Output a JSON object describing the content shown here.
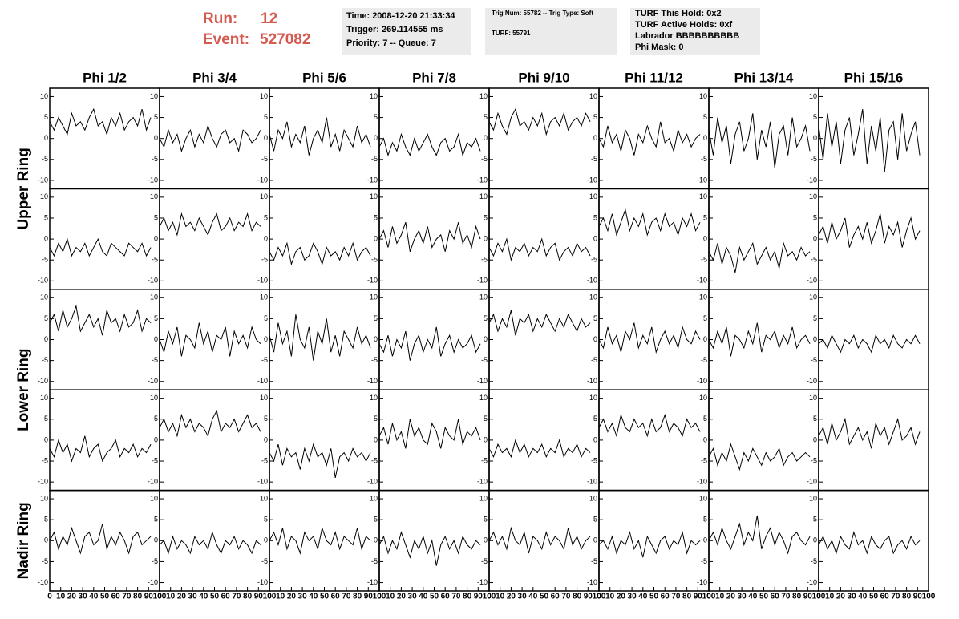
{
  "header": {
    "run_label": "Run:",
    "run": "12",
    "event_label": "Event:",
    "event": "527082",
    "box1": [
      "Time: 2008-12-20 21:33:34",
      "Trigger: 269.114555 ms",
      "Priority: 7 -- Queue: 7"
    ],
    "box2": [
      "Trig Num: 55782 -- Trig Type: Soft",
      "TURF: 55791"
    ],
    "box3": [
      "TURF This Hold: 0x2",
      "TURF Active Holds: 0xf",
      "Labrador BBBBBBBBBB",
      "Phi Mask: 0"
    ]
  },
  "chart_data": {
    "type": "waveform-grid",
    "phi_labels": [
      "Phi 1/2",
      "Phi 3/4",
      "Phi 5/6",
      "Phi 7/8",
      "Phi 9/10",
      "Phi 11/12",
      "Phi 13/14",
      "Phi 15/16"
    ],
    "ring_labels": [
      "Upper Ring",
      "Lower Ring",
      "Nadir Ring"
    ],
    "xlim": [
      0,
      100
    ],
    "ylim": [
      -12,
      12
    ],
    "xticks": [
      0,
      10,
      20,
      30,
      40,
      50,
      60,
      70,
      80,
      90,
      100
    ],
    "yticks": [
      10,
      5,
      0,
      -5,
      -10
    ],
    "color": "#000000",
    "x": [
      0,
      4,
      8,
      12,
      16,
      20,
      24,
      28,
      32,
      36,
      40,
      44,
      48,
      52,
      56,
      60,
      64,
      68,
      72,
      76,
      80,
      84,
      88,
      92
    ],
    "panels": [
      [
        [
          4,
          2,
          5,
          3,
          1,
          6,
          3,
          4,
          2,
          5,
          7,
          3,
          4,
          1,
          5,
          3,
          6,
          2,
          4,
          5,
          3,
          7,
          2,
          5
        ],
        [
          0,
          -2,
          2,
          -1,
          1,
          -3,
          0,
          2,
          -2,
          1,
          -1,
          3,
          0,
          -2,
          1,
          2,
          -1,
          0,
          -3,
          2,
          1,
          -1,
          0,
          2
        ],
        [
          1,
          -3,
          2,
          0,
          4,
          -2,
          1,
          -1,
          3,
          -4,
          0,
          2,
          -1,
          5,
          -2,
          1,
          -3,
          2,
          0,
          -2,
          3,
          -1,
          1,
          -2
        ],
        [
          -2,
          0,
          -4,
          -1,
          -3,
          1,
          -2,
          -4,
          0,
          -3,
          -1,
          1,
          -2,
          -4,
          -1,
          0,
          -3,
          -2,
          1,
          -4,
          -1,
          -2,
          0,
          -3
        ],
        [
          4,
          2,
          6,
          3,
          1,
          5,
          7,
          3,
          4,
          2,
          5,
          3,
          6,
          1,
          4,
          5,
          3,
          6,
          2,
          4,
          5,
          3,
          6,
          4
        ],
        [
          0,
          -2,
          3,
          -1,
          1,
          -3,
          2,
          0,
          -4,
          1,
          -1,
          3,
          0,
          -2,
          4,
          -1,
          0,
          -3,
          2,
          -1,
          1,
          -2,
          0,
          1
        ],
        [
          2,
          -4,
          5,
          -1,
          3,
          -6,
          1,
          4,
          -3,
          0,
          6,
          -5,
          2,
          -2,
          4,
          -7,
          1,
          3,
          -4,
          5,
          -2,
          0,
          3,
          -3
        ],
        [
          3,
          -5,
          6,
          -2,
          4,
          -6,
          2,
          5,
          -4,
          1,
          7,
          -6,
          3,
          -3,
          5,
          -8,
          2,
          4,
          -5,
          6,
          -3,
          1,
          4,
          -4
        ]
      ],
      [
        [
          -2,
          -4,
          -1,
          -3,
          0,
          -4,
          -2,
          -3,
          -1,
          -4,
          -2,
          0,
          -3,
          -4,
          -1,
          -2,
          -3,
          -4,
          -1,
          -2,
          -3,
          -1,
          -4,
          -2
        ],
        [
          3,
          5,
          2,
          4,
          1,
          6,
          3,
          4,
          2,
          5,
          3,
          1,
          4,
          6,
          2,
          3,
          5,
          2,
          4,
          3,
          6,
          2,
          4,
          3
        ],
        [
          -3,
          -5,
          -2,
          -4,
          -1,
          -6,
          -3,
          -2,
          -5,
          -4,
          -1,
          -3,
          -6,
          -2,
          -4,
          -3,
          -5,
          -2,
          -4,
          -1,
          -5,
          -3,
          -2,
          -4
        ],
        [
          0,
          2,
          -2,
          3,
          -1,
          1,
          4,
          -3,
          0,
          2,
          -1,
          3,
          -2,
          0,
          1,
          -3,
          2,
          0,
          4,
          -1,
          1,
          -2,
          3,
          0
        ],
        [
          -2,
          -4,
          -1,
          -3,
          0,
          -5,
          -2,
          -3,
          -1,
          -4,
          -2,
          -3,
          0,
          -4,
          -2,
          -1,
          -5,
          -3,
          -2,
          -4,
          -1,
          -3,
          -2,
          -4
        ],
        [
          3,
          5,
          2,
          6,
          1,
          4,
          7,
          2,
          5,
          3,
          6,
          1,
          4,
          5,
          2,
          6,
          3,
          4,
          1,
          5,
          3,
          6,
          2,
          4
        ],
        [
          -3,
          -5,
          -1,
          -6,
          -2,
          -4,
          -8,
          -2,
          -5,
          -3,
          -1,
          -6,
          -4,
          -2,
          -5,
          -3,
          -7,
          -1,
          -4,
          -3,
          -5,
          -2,
          -4,
          -3
        ],
        [
          1,
          3,
          -1,
          4,
          0,
          2,
          5,
          -2,
          1,
          3,
          0,
          4,
          -1,
          2,
          6,
          -1,
          3,
          1,
          4,
          -2,
          2,
          5,
          0,
          2
        ]
      ],
      [
        [
          4,
          6,
          2,
          7,
          3,
          5,
          8,
          2,
          4,
          6,
          3,
          5,
          1,
          7,
          4,
          5,
          2,
          6,
          3,
          4,
          7,
          2,
          5,
          4
        ],
        [
          0,
          -3,
          2,
          -1,
          3,
          -4,
          1,
          0,
          -2,
          4,
          -1,
          2,
          -3,
          1,
          0,
          3,
          -4,
          2,
          -1,
          1,
          -2,
          3,
          0,
          -1
        ],
        [
          1,
          -3,
          4,
          -1,
          2,
          -4,
          6,
          0,
          -2,
          3,
          -5,
          2,
          -1,
          5,
          -3,
          1,
          -4,
          2,
          0,
          -2,
          3,
          -1,
          1,
          -2
        ],
        [
          -1,
          -3,
          1,
          -4,
          0,
          -2,
          2,
          -5,
          -1,
          1,
          -3,
          0,
          -2,
          3,
          -4,
          -1,
          1,
          -3,
          0,
          -2,
          -1,
          1,
          -3,
          -1
        ],
        [
          4,
          6,
          2,
          5,
          3,
          7,
          1,
          5,
          4,
          6,
          2,
          5,
          3,
          6,
          4,
          2,
          5,
          3,
          6,
          4,
          2,
          5,
          3,
          4
        ],
        [
          0,
          -2,
          3,
          -1,
          1,
          -3,
          2,
          0,
          4,
          -2,
          1,
          -1,
          3,
          -3,
          0,
          2,
          -1,
          1,
          -2,
          3,
          0,
          -1,
          2,
          0
        ],
        [
          0,
          -2,
          2,
          -1,
          3,
          -4,
          1,
          0,
          -2,
          2,
          -1,
          4,
          -3,
          1,
          0,
          2,
          -2,
          1,
          -1,
          3,
          -2,
          0,
          1,
          -1
        ],
        [
          -1,
          0,
          -2,
          1,
          -1,
          -3,
          0,
          -1,
          1,
          -2,
          0,
          -1,
          -3,
          1,
          -1,
          0,
          -2,
          1,
          -1,
          -2,
          0,
          -1,
          1,
          -1
        ]
      ],
      [
        [
          -2,
          -4,
          0,
          -3,
          -1,
          -5,
          -2,
          -3,
          1,
          -4,
          -2,
          -1,
          -5,
          -3,
          -2,
          0,
          -4,
          -2,
          -3,
          -1,
          -4,
          -2,
          -3,
          -1
        ],
        [
          3,
          5,
          2,
          4,
          1,
          6,
          3,
          5,
          2,
          4,
          3,
          1,
          5,
          7,
          2,
          4,
          3,
          5,
          2,
          4,
          6,
          3,
          4,
          2
        ],
        [
          -3,
          -5,
          -1,
          -6,
          -2,
          -4,
          -3,
          -7,
          -2,
          -5,
          -1,
          -4,
          -3,
          -6,
          -2,
          -9,
          -4,
          -3,
          -5,
          -2,
          -4,
          -3,
          -5,
          -3
        ],
        [
          1,
          3,
          -1,
          4,
          0,
          2,
          -2,
          5,
          1,
          3,
          0,
          -1,
          4,
          2,
          -2,
          3,
          1,
          0,
          5,
          -1,
          2,
          1,
          3,
          0
        ],
        [
          -2,
          -4,
          -1,
          -3,
          -2,
          -4,
          0,
          -3,
          -1,
          -4,
          -2,
          -3,
          -1,
          -4,
          -2,
          -3,
          0,
          -4,
          -2,
          -3,
          -1,
          -4,
          -2,
          -3
        ],
        [
          3,
          5,
          2,
          4,
          1,
          6,
          3,
          2,
          5,
          3,
          4,
          1,
          5,
          2,
          3,
          6,
          2,
          4,
          3,
          1,
          5,
          3,
          4,
          2
        ],
        [
          -4,
          -2,
          -6,
          -3,
          -5,
          -1,
          -4,
          -7,
          -3,
          -5,
          -2,
          -4,
          -6,
          -3,
          -5,
          -4,
          -2,
          -6,
          -4,
          -3,
          -5,
          -4,
          -3,
          -4
        ],
        [
          1,
          3,
          -1,
          4,
          0,
          2,
          5,
          -1,
          1,
          3,
          0,
          2,
          -2,
          4,
          1,
          3,
          -1,
          2,
          5,
          0,
          1,
          3,
          -1,
          2
        ]
      ],
      [
        [
          0,
          2,
          -2,
          1,
          -1,
          3,
          0,
          -3,
          1,
          2,
          -1,
          0,
          4,
          -2,
          1,
          -1,
          2,
          0,
          -3,
          1,
          2,
          -1,
          0,
          1
        ],
        [
          -1,
          0,
          -3,
          1,
          -2,
          0,
          -1,
          -3,
          1,
          -1,
          0,
          -2,
          2,
          -1,
          -3,
          0,
          -1,
          1,
          -2,
          0,
          -1,
          -3,
          0,
          -1
        ],
        [
          0,
          2,
          -1,
          3,
          -2,
          1,
          0,
          -3,
          2,
          0,
          1,
          -2,
          3,
          0,
          -1,
          2,
          -2,
          1,
          0,
          -1,
          3,
          -2,
          1,
          0
        ],
        [
          -1,
          1,
          -3,
          0,
          -2,
          2,
          -1,
          -4,
          0,
          -2,
          1,
          -3,
          0,
          -6,
          -1,
          1,
          -2,
          0,
          -3,
          1,
          -1,
          -2,
          0,
          -1
        ],
        [
          0,
          2,
          -1,
          1,
          -2,
          3,
          0,
          -1,
          2,
          -3,
          1,
          0,
          -2,
          2,
          -1,
          1,
          0,
          -2,
          3,
          -1,
          1,
          -2,
          0,
          1
        ],
        [
          -1,
          0,
          -2,
          1,
          -3,
          0,
          -1,
          2,
          -2,
          0,
          -4,
          1,
          -1,
          -3,
          0,
          1,
          -2,
          0,
          -1,
          2,
          -3,
          0,
          -1,
          0
        ],
        [
          0,
          2,
          -1,
          3,
          0,
          -2,
          1,
          4,
          -1,
          2,
          0,
          6,
          -2,
          1,
          3,
          -1,
          2,
          0,
          -3,
          1,
          2,
          0,
          -1,
          1
        ],
        [
          -1,
          1,
          -2,
          0,
          -3,
          1,
          -1,
          -2,
          2,
          -1,
          0,
          -3,
          1,
          -1,
          -2,
          0,
          1,
          -3,
          -1,
          0,
          -2,
          1,
          -1,
          0
        ]
      ]
    ]
  }
}
